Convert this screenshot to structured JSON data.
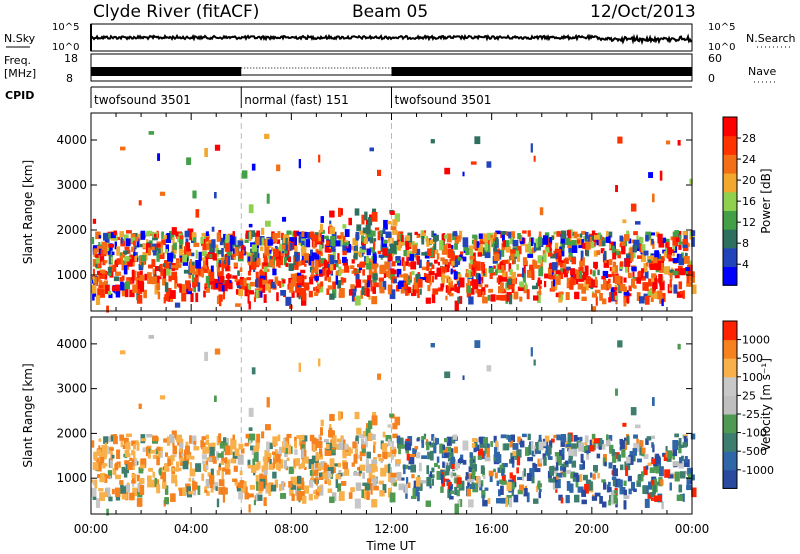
{
  "header": {
    "title": "Clyde River (fitACF)",
    "beam": "Beam 05",
    "date": "12/Oct/2013"
  },
  "strips": {
    "nsky_label": "N.Sky",
    "nsky_ticks": [
      "10^5",
      "10^0"
    ],
    "nsearch_label": "N.Search",
    "nsearch_ticks": [
      "10^5",
      "10^0"
    ],
    "freq_label_1": "Freq.",
    "freq_label_2": "[MHz]",
    "freq_ticks": [
      "18",
      "8"
    ],
    "nave_label": "Nave",
    "nave_ticks": [
      "60",
      "0"
    ],
    "cpid_label": "CPID"
  },
  "cpid_segments": [
    {
      "label": "twofsound 3501",
      "start_hour": 0,
      "end_hour": 6
    },
    {
      "label": "normal (fast) 151",
      "start_hour": 6,
      "end_hour": 12
    },
    {
      "label": "twofsound 3501",
      "start_hour": 12,
      "end_hour": 24
    }
  ],
  "time_axis": {
    "label": "Time UT",
    "ticks": [
      "00:00",
      "04:00",
      "08:00",
      "12:00",
      "16:00",
      "20:00",
      "00:00"
    ]
  },
  "chart_data": [
    {
      "type": "heatmap",
      "name": "power",
      "ylabel": "Slant Range [km]",
      "y_ticks": [
        1000,
        2000,
        3000,
        4000
      ],
      "ylim": [
        200,
        4600
      ],
      "xlim": [
        0,
        24
      ],
      "colorbar_label": "Power [dB]",
      "colorbar_ticks": [
        "28",
        "24",
        "20",
        "16",
        "12",
        "8",
        "4"
      ],
      "colors": [
        "#0000ff",
        "#2244bb",
        "#2e6f5e",
        "#43a046",
        "#8fd14f",
        "#f2a72e",
        "#f36f16",
        "#ff3300",
        "#ff0000"
      ]
    },
    {
      "type": "heatmap",
      "name": "velocity",
      "ylabel": "Slant Range [km]",
      "y_ticks": [
        1000,
        2000,
        3000,
        4000
      ],
      "ylim": [
        200,
        4600
      ],
      "xlim": [
        0,
        24
      ],
      "colorbar_label": "Velocity [m s⁻¹]",
      "colorbar_ticks": [
        "1000",
        "500",
        "100",
        "25",
        "-25",
        "-100",
        "-500",
        "-1000"
      ],
      "colors": [
        "#2a4aa0",
        "#2f66a8",
        "#3c7d6e",
        "#4f9a52",
        "#bfbfbf",
        "#c8c8c8",
        "#f7b04a",
        "#f5821f",
        "#ff2200"
      ]
    }
  ]
}
